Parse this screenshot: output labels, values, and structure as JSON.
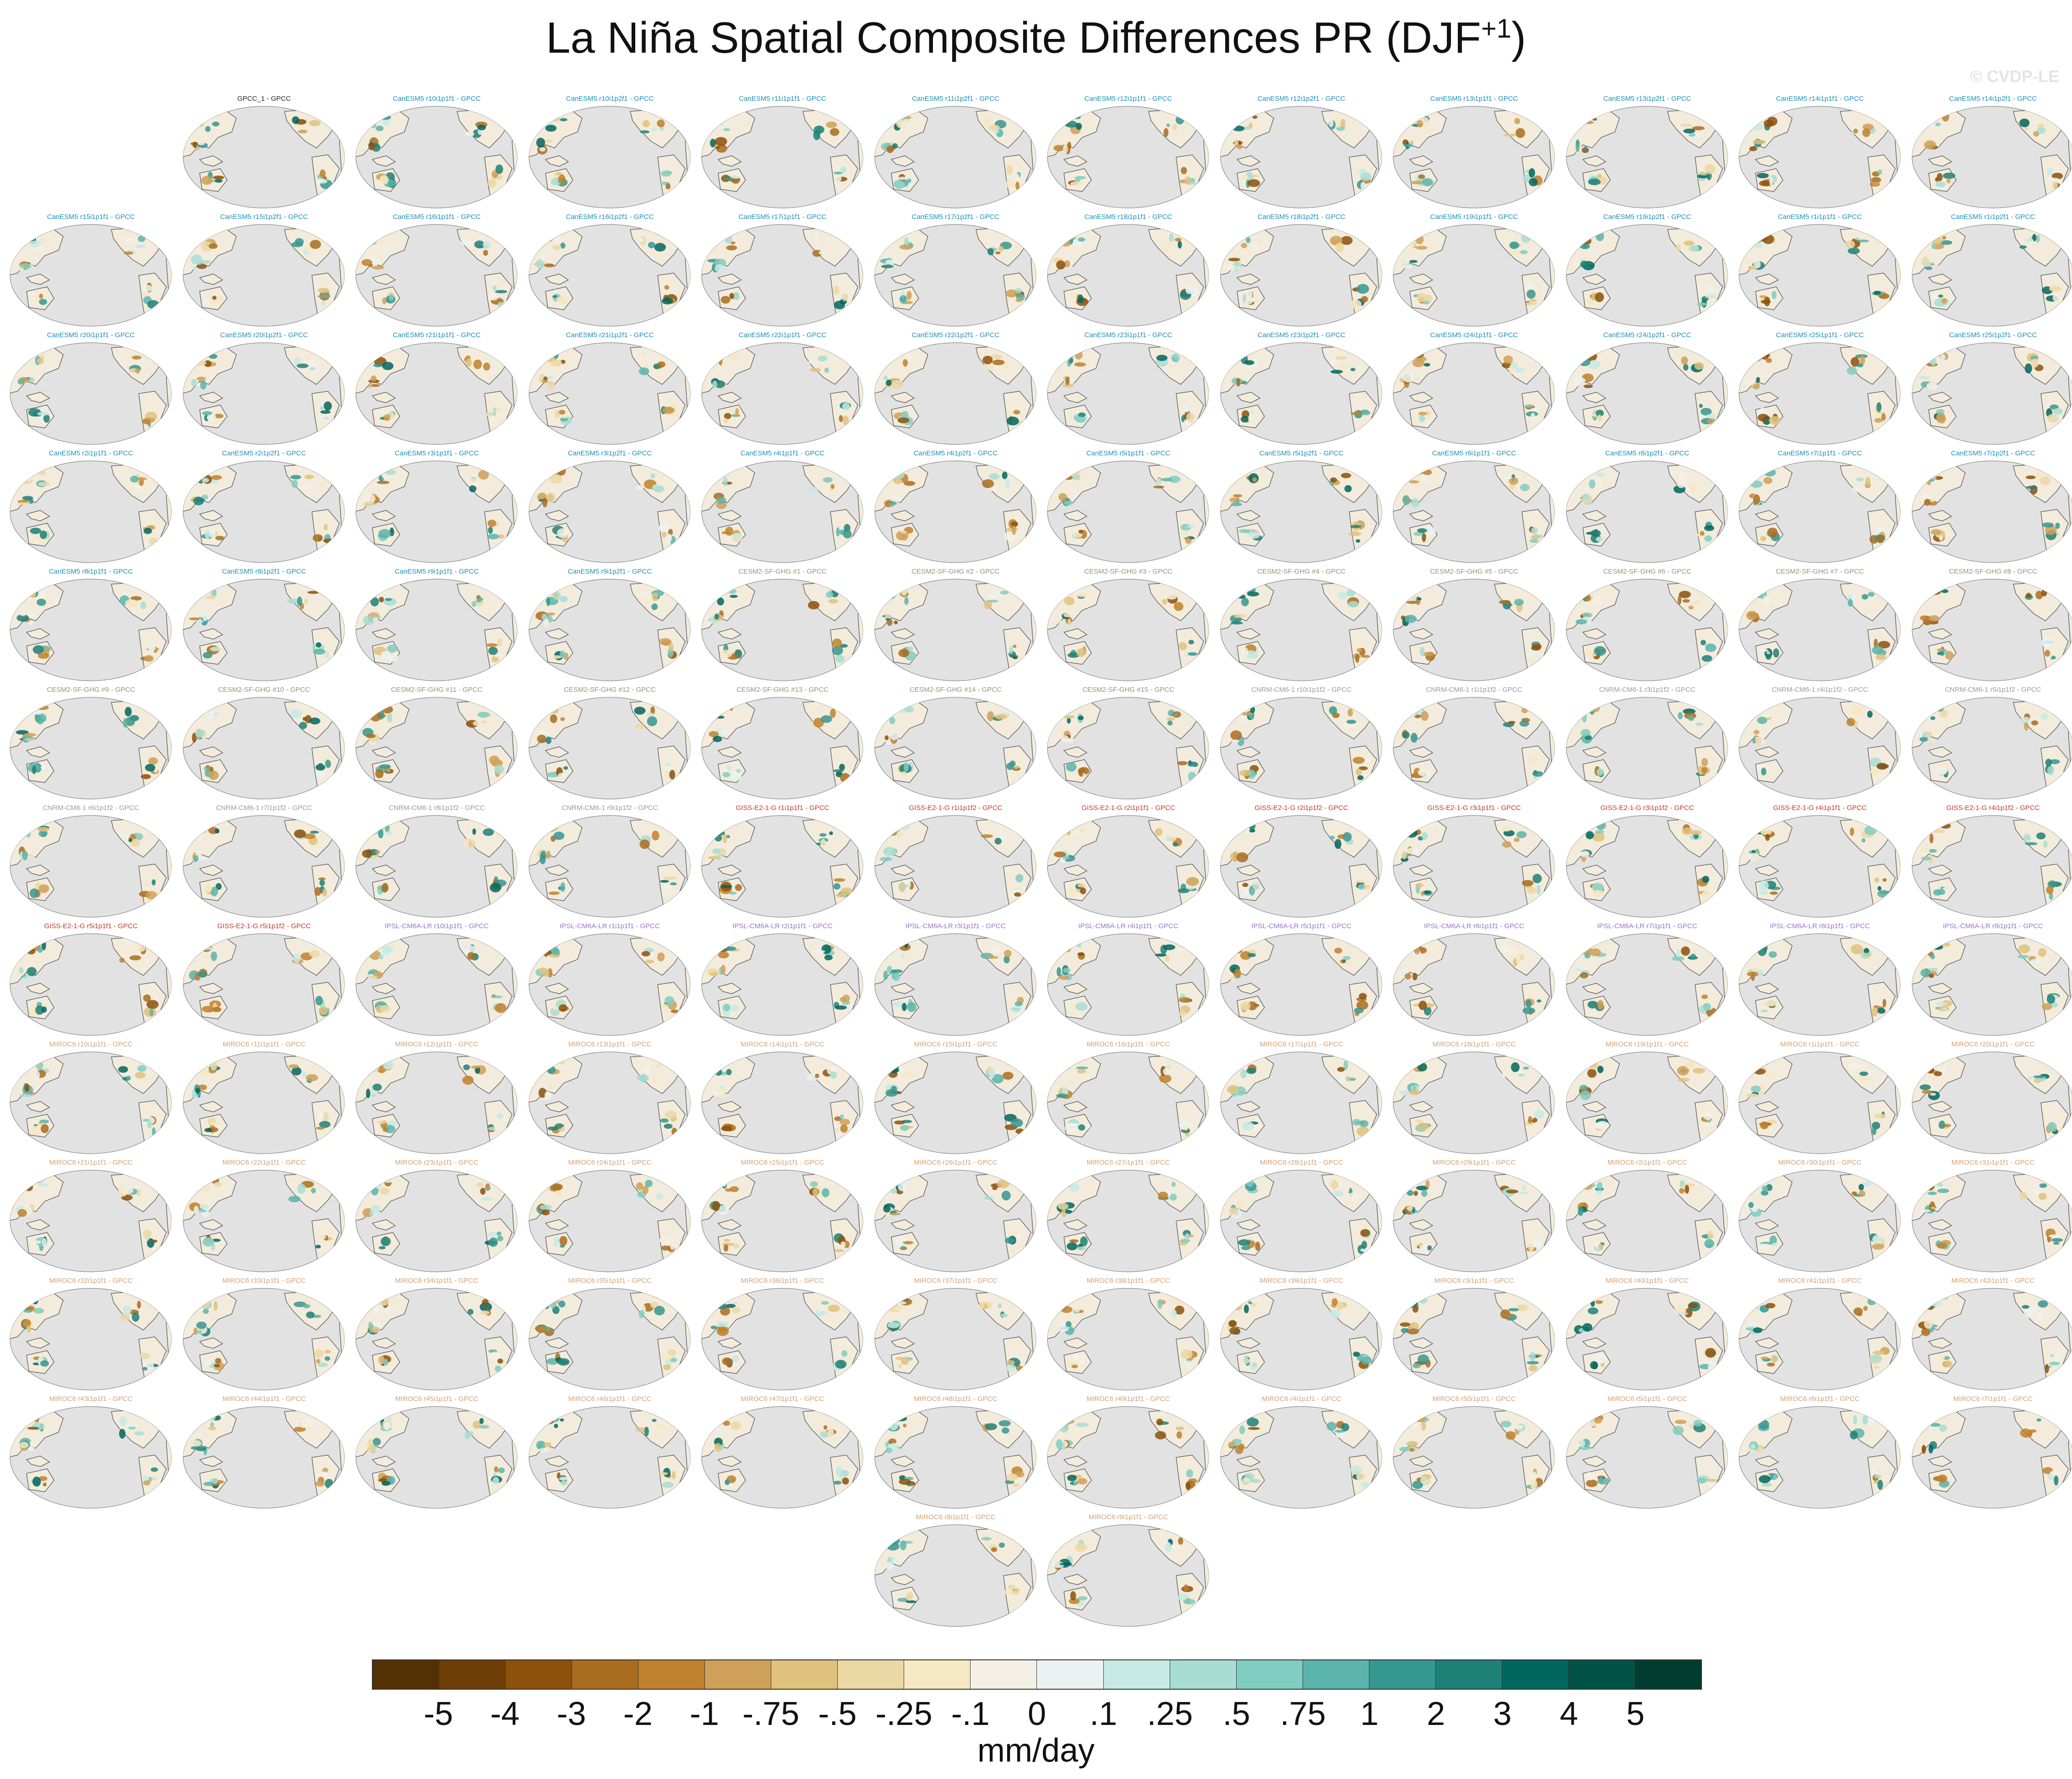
{
  "header": {
    "title_main": "La Niña Spatial Composite Differences PR (DJF",
    "title_sup": "+1",
    "title_end": ")",
    "watermark": "© CVDP-LE"
  },
  "colors": {
    "obs": "#222222",
    "CanESM5": "#1a8fb8",
    "CESM2-SF-GHG": "#8a9a72",
    "CNRM-CM6-1": "#9a9a9a",
    "GISS-E2-1-G": "#c0392b",
    "IPSL-CM6A-LR": "#9b72c9",
    "MIROC6": "#d4a074",
    "ocean": "#e2e2e2",
    "land": "#f3ecdc",
    "coast": "#555555"
  },
  "panels": [
    {
      "label": "GPCC_1 - GPCC",
      "group": "obs"
    },
    {
      "label": "CanESM5 r10i1p1f1 - GPCC",
      "group": "CanESM5"
    },
    {
      "label": "CanESM5 r10i1p2f1 - GPCC",
      "group": "CanESM5"
    },
    {
      "label": "CanESM5 r11i1p1f1 - GPCC",
      "group": "CanESM5"
    },
    {
      "label": "CanESM5 r11i1p2f1 - GPCC",
      "group": "CanESM5"
    },
    {
      "label": "CanESM5 r12i1p1f1 - GPCC",
      "group": "CanESM5"
    },
    {
      "label": "CanESM5 r12i1p2f1 - GPCC",
      "group": "CanESM5"
    },
    {
      "label": "CanESM5 r13i1p1f1 - GPCC",
      "group": "CanESM5"
    },
    {
      "label": "CanESM5 r13i1p2f1 - GPCC",
      "group": "CanESM5"
    },
    {
      "label": "CanESM5 r14i1p1f1 - GPCC",
      "group": "CanESM5"
    },
    {
      "label": "CanESM5 r14i1p2f1 - GPCC",
      "group": "CanESM5"
    },
    {
      "label": "CanESM5 r15i1p1f1 - GPCC",
      "group": "CanESM5"
    },
    {
      "label": "CanESM5 r15i1p2f1 - GPCC",
      "group": "CanESM5"
    },
    {
      "label": "CanESM5 r16i1p1f1 - GPCC",
      "group": "CanESM5"
    },
    {
      "label": "CanESM5 r16i1p2f1 - GPCC",
      "group": "CanESM5"
    },
    {
      "label": "CanESM5 r17i1p1f1 - GPCC",
      "group": "CanESM5"
    },
    {
      "label": "CanESM5 r17i1p2f1 - GPCC",
      "group": "CanESM5"
    },
    {
      "label": "CanESM5 r18i1p1f1 - GPCC",
      "group": "CanESM5"
    },
    {
      "label": "CanESM5 r18i1p2f1 - GPCC",
      "group": "CanESM5"
    },
    {
      "label": "CanESM5 r19i1p1f1 - GPCC",
      "group": "CanESM5"
    },
    {
      "label": "CanESM5 r19i1p2f1 - GPCC",
      "group": "CanESM5"
    },
    {
      "label": "CanESM5 r1i1p1f1 - GPCC",
      "group": "CanESM5"
    },
    {
      "label": "CanESM5 r1i1p2f1 - GPCC",
      "group": "CanESM5"
    },
    {
      "label": "CanESM5 r20i1p1f1 - GPCC",
      "group": "CanESM5"
    },
    {
      "label": "CanESM5 r20i1p2f1 - GPCC",
      "group": "CanESM5"
    },
    {
      "label": "CanESM5 r21i1p1f1 - GPCC",
      "group": "CanESM5"
    },
    {
      "label": "CanESM5 r21i1p2f1 - GPCC",
      "group": "CanESM5"
    },
    {
      "label": "CanESM5 r22i1p1f1 - GPCC",
      "group": "CanESM5"
    },
    {
      "label": "CanESM5 r22i1p2f1 - GPCC",
      "group": "CanESM5"
    },
    {
      "label": "CanESM5 r23i1p1f1 - GPCC",
      "group": "CanESM5"
    },
    {
      "label": "CanESM5 r23i1p2f1 - GPCC",
      "group": "CanESM5"
    },
    {
      "label": "CanESM5 r24i1p1f1 - GPCC",
      "group": "CanESM5"
    },
    {
      "label": "CanESM5 r24i1p2f1 - GPCC",
      "group": "CanESM5"
    },
    {
      "label": "CanESM5 r25i1p1f1 - GPCC",
      "group": "CanESM5"
    },
    {
      "label": "CanESM5 r25i1p2f1 - GPCC",
      "group": "CanESM5"
    },
    {
      "label": "CanESM5 r2i1p1f1 - GPCC",
      "group": "CanESM5"
    },
    {
      "label": "CanESM5 r2i1p2f1 - GPCC",
      "group": "CanESM5"
    },
    {
      "label": "CanESM5 r3i1p1f1 - GPCC",
      "group": "CanESM5"
    },
    {
      "label": "CanESM5 r3i1p2f1 - GPCC",
      "group": "CanESM5"
    },
    {
      "label": "CanESM5 r4i1p1f1 - GPCC",
      "group": "CanESM5"
    },
    {
      "label": "CanESM5 r4i1p2f1 - GPCC",
      "group": "CanESM5"
    },
    {
      "label": "CanESM5 r5i1p1f1 - GPCC",
      "group": "CanESM5"
    },
    {
      "label": "CanESM5 r5i1p2f1 - GPCC",
      "group": "CanESM5"
    },
    {
      "label": "CanESM5 r6i1p1f1 - GPCC",
      "group": "CanESM5"
    },
    {
      "label": "CanESM5 r6i1p2f1 - GPCC",
      "group": "CanESM5"
    },
    {
      "label": "CanESM5 r7i1p1f1 - GPCC",
      "group": "CanESM5"
    },
    {
      "label": "CanESM5 r7i1p2f1 - GPCC",
      "group": "CanESM5"
    },
    {
      "label": "CanESM5 r8i1p1f1 - GPCC",
      "group": "CanESM5"
    },
    {
      "label": "CanESM5 r8i1p2f1 - GPCC",
      "group": "CanESM5"
    },
    {
      "label": "CanESM5 r9i1p1f1 - GPCC",
      "group": "CanESM5"
    },
    {
      "label": "CanESM5 r9i1p2f1 - GPCC",
      "group": "CanESM5"
    },
    {
      "label": "CESM2-SF-GHG #1 - GPCC",
      "group": "CESM2-SF-GHG"
    },
    {
      "label": "CESM2-SF-GHG #2 - GPCC",
      "group": "CESM2-SF-GHG"
    },
    {
      "label": "CESM2-SF-GHG #3 - GPCC",
      "group": "CESM2-SF-GHG"
    },
    {
      "label": "CESM2-SF-GHG #4 - GPCC",
      "group": "CESM2-SF-GHG"
    },
    {
      "label": "CESM2-SF-GHG #5 - GPCC",
      "group": "CESM2-SF-GHG"
    },
    {
      "label": "CESM2-SF-GHG #6 - GPCC",
      "group": "CESM2-SF-GHG"
    },
    {
      "label": "CESM2-SF-GHG #7 - GPCC",
      "group": "CESM2-SF-GHG"
    },
    {
      "label": "CESM2-SF-GHG #8 - GPCC",
      "group": "CESM2-SF-GHG"
    },
    {
      "label": "CESM2-SF-GHG #9 - GPCC",
      "group": "CESM2-SF-GHG"
    },
    {
      "label": "CESM2-SF-GHG #10 - GPCC",
      "group": "CESM2-SF-GHG"
    },
    {
      "label": "CESM2-SF-GHG #11 - GPCC",
      "group": "CESM2-SF-GHG"
    },
    {
      "label": "CESM2-SF-GHG #12 - GPCC",
      "group": "CESM2-SF-GHG"
    },
    {
      "label": "CESM2-SF-GHG #13 - GPCC",
      "group": "CESM2-SF-GHG"
    },
    {
      "label": "CESM2-SF-GHG #14 - GPCC",
      "group": "CESM2-SF-GHG"
    },
    {
      "label": "CESM2-SF-GHG #15 - GPCC",
      "group": "CESM2-SF-GHG"
    },
    {
      "label": "CNRM-CM6-1 r10i1p1f2 - GPCC",
      "group": "CNRM-CM6-1"
    },
    {
      "label": "CNRM-CM6-1 r1i1p1f2 - GPCC",
      "group": "CNRM-CM6-1"
    },
    {
      "label": "CNRM-CM6-1 r3i1p1f2 - GPCC",
      "group": "CNRM-CM6-1"
    },
    {
      "label": "CNRM-CM6-1 r4i1p1f2 - GPCC",
      "group": "CNRM-CM6-1"
    },
    {
      "label": "CNRM-CM6-1 r5i1p1f2 - GPCC",
      "group": "CNRM-CM6-1"
    },
    {
      "label": "CNRM-CM6-1 r6i1p1f2 - GPCC",
      "group": "CNRM-CM6-1"
    },
    {
      "label": "CNRM-CM6-1 r7i1p1f2 - GPCC",
      "group": "CNRM-CM6-1"
    },
    {
      "label": "CNRM-CM6-1 r8i1p1f2 - GPCC",
      "group": "CNRM-CM6-1"
    },
    {
      "label": "CNRM-CM6-1 r9i1p1f2 - GPCC",
      "group": "CNRM-CM6-1"
    },
    {
      "label": "GISS-E2-1-G r1i1p1f1 - GPCC",
      "group": "GISS-E2-1-G"
    },
    {
      "label": "GISS-E2-1-G r1i1p1f2 - GPCC",
      "group": "GISS-E2-1-G"
    },
    {
      "label": "GISS-E2-1-G r2i1p1f1 - GPCC",
      "group": "GISS-E2-1-G"
    },
    {
      "label": "GISS-E2-1-G r2i1p1f2 - GPCC",
      "group": "GISS-E2-1-G"
    },
    {
      "label": "GISS-E2-1-G r3i1p1f1 - GPCC",
      "group": "GISS-E2-1-G"
    },
    {
      "label": "GISS-E2-1-G r3i1p1f2 - GPCC",
      "group": "GISS-E2-1-G"
    },
    {
      "label": "GISS-E2-1-G r4i1p1f1 - GPCC",
      "group": "GISS-E2-1-G"
    },
    {
      "label": "GISS-E2-1-G r4i1p1f2 - GPCC",
      "group": "GISS-E2-1-G"
    },
    {
      "label": "GISS-E2-1-G r5i1p1f1 - GPCC",
      "group": "GISS-E2-1-G"
    },
    {
      "label": "GISS-E2-1-G r5i1p1f2 - GPCC",
      "group": "GISS-E2-1-G"
    },
    {
      "label": "IPSL-CM6A-LR r10i1p1f1 - GPCC",
      "group": "IPSL-CM6A-LR"
    },
    {
      "label": "IPSL-CM6A-LR r1i1p1f1 - GPCC",
      "group": "IPSL-CM6A-LR"
    },
    {
      "label": "IPSL-CM6A-LR r2i1p1f1 - GPCC",
      "group": "IPSL-CM6A-LR"
    },
    {
      "label": "IPSL-CM6A-LR r3i1p1f1 - GPCC",
      "group": "IPSL-CM6A-LR"
    },
    {
      "label": "IPSL-CM6A-LR r4i1p1f1 - GPCC",
      "group": "IPSL-CM6A-LR"
    },
    {
      "label": "IPSL-CM6A-LR r5i1p1f1 - GPCC",
      "group": "IPSL-CM6A-LR"
    },
    {
      "label": "IPSL-CM6A-LR r6i1p1f1 - GPCC",
      "group": "IPSL-CM6A-LR"
    },
    {
      "label": "IPSL-CM6A-LR r7i1p1f1 - GPCC",
      "group": "IPSL-CM6A-LR"
    },
    {
      "label": "IPSL-CM6A-LR r8i1p1f1 - GPCC",
      "group": "IPSL-CM6A-LR"
    },
    {
      "label": "IPSL-CM6A-LR r9i1p1f1 - GPCC",
      "group": "IPSL-CM6A-LR"
    },
    {
      "label": "MIROC6 r10i1p1f1 - GPCC",
      "group": "MIROC6"
    },
    {
      "label": "MIROC6 r11i1p1f1 - GPCC",
      "group": "MIROC6"
    },
    {
      "label": "MIROC6 r12i1p1f1 - GPCC",
      "group": "MIROC6"
    },
    {
      "label": "MIROC6 r13i1p1f1 - GPCC",
      "group": "MIROC6"
    },
    {
      "label": "MIROC6 r14i1p1f1 - GPCC",
      "group": "MIROC6"
    },
    {
      "label": "MIROC6 r15i1p1f1 - GPCC",
      "group": "MIROC6"
    },
    {
      "label": "MIROC6 r16i1p1f1 - GPCC",
      "group": "MIROC6"
    },
    {
      "label": "MIROC6 r17i1p1f1 - GPCC",
      "group": "MIROC6"
    },
    {
      "label": "MIROC6 r18i1p1f1 - GPCC",
      "group": "MIROC6"
    },
    {
      "label": "MIROC6 r19i1p1f1 - GPCC",
      "group": "MIROC6"
    },
    {
      "label": "MIROC6 r1i1p1f1 - GPCC",
      "group": "MIROC6"
    },
    {
      "label": "MIROC6 r20i1p1f1 - GPCC",
      "group": "MIROC6"
    },
    {
      "label": "MIROC6 r21i1p1f1 - GPCC",
      "group": "MIROC6"
    },
    {
      "label": "MIROC6 r22i1p1f1 - GPCC",
      "group": "MIROC6"
    },
    {
      "label": "MIROC6 r23i1p1f1 - GPCC",
      "group": "MIROC6"
    },
    {
      "label": "MIROC6 r24i1p1f1 - GPCC",
      "group": "MIROC6"
    },
    {
      "label": "MIROC6 r25i1p1f1 - GPCC",
      "group": "MIROC6"
    },
    {
      "label": "MIROC6 r26i1p1f1 - GPCC",
      "group": "MIROC6"
    },
    {
      "label": "MIROC6 r27i1p1f1 - GPCC",
      "group": "MIROC6"
    },
    {
      "label": "MIROC6 r28i1p1f1 - GPCC",
      "group": "MIROC6"
    },
    {
      "label": "MIROC6 r29i1p1f1 - GPCC",
      "group": "MIROC6"
    },
    {
      "label": "MIROC6 r2i1p1f1 - GPCC",
      "group": "MIROC6"
    },
    {
      "label": "MIROC6 r30i1p1f1 - GPCC",
      "group": "MIROC6"
    },
    {
      "label": "MIROC6 r31i1p1f1 - GPCC",
      "group": "MIROC6"
    },
    {
      "label": "MIROC6 r32i1p1f1 - GPCC",
      "group": "MIROC6"
    },
    {
      "label": "MIROC6 r33i1p1f1 - GPCC",
      "group": "MIROC6"
    },
    {
      "label": "MIROC6 r34i1p1f1 - GPCC",
      "group": "MIROC6"
    },
    {
      "label": "MIROC6 r35i1p1f1 - GPCC",
      "group": "MIROC6"
    },
    {
      "label": "MIROC6 r36i1p1f1 - GPCC",
      "group": "MIROC6"
    },
    {
      "label": "MIROC6 r37i1p1f1 - GPCC",
      "group": "MIROC6"
    },
    {
      "label": "MIROC6 r38i1p1f1 - GPCC",
      "group": "MIROC6"
    },
    {
      "label": "MIROC6 r39i1p1f1 - GPCC",
      "group": "MIROC6"
    },
    {
      "label": "MIROC6 r3i1p1f1 - GPCC",
      "group": "MIROC6"
    },
    {
      "label": "MIROC6 r40i1p1f1 - GPCC",
      "group": "MIROC6"
    },
    {
      "label": "MIROC6 r41i1p1f1 - GPCC",
      "group": "MIROC6"
    },
    {
      "label": "MIROC6 r42i1p1f1 - GPCC",
      "group": "MIROC6"
    },
    {
      "label": "MIROC6 r43i1p1f1 - GPCC",
      "group": "MIROC6"
    },
    {
      "label": "MIROC6 r44i1p1f1 - GPCC",
      "group": "MIROC6"
    },
    {
      "label": "MIROC6 r45i1p1f1 - GPCC",
      "group": "MIROC6"
    },
    {
      "label": "MIROC6 r46i1p1f1 - GPCC",
      "group": "MIROC6"
    },
    {
      "label": "MIROC6 r47i1p1f1 - GPCC",
      "group": "MIROC6"
    },
    {
      "label": "MIROC6 r48i1p1f1 - GPCC",
      "group": "MIROC6"
    },
    {
      "label": "MIROC6 r49i1p1f1 - GPCC",
      "group": "MIROC6"
    },
    {
      "label": "MIROC6 r4i1p1f1 - GPCC",
      "group": "MIROC6"
    },
    {
      "label": "MIROC6 r50i1p1f1 - GPCC",
      "group": "MIROC6"
    },
    {
      "label": "MIROC6 r5i1p1f1 - GPCC",
      "group": "MIROC6"
    },
    {
      "label": "MIROC6 r6i1p1f1 - GPCC",
      "group": "MIROC6"
    },
    {
      "label": "MIROC6 r7i1p1f1 - GPCC",
      "group": "MIROC6"
    },
    {
      "label": "MIROC6 r8i1p1f1 - GPCC",
      "group": "MIROC6"
    },
    {
      "label": "MIROC6 r9i1p1f1 - GPCC",
      "group": "MIROC6"
    }
  ],
  "colorbar": {
    "colors": [
      "#543005",
      "#6e3f07",
      "#8c510a",
      "#a96d20",
      "#bf812d",
      "#cfa057",
      "#dfc27d",
      "#ecd8a5",
      "#f6e8c3",
      "#f5f0e6",
      "#eaf3f1",
      "#c7eae5",
      "#a8ddd4",
      "#80cdc1",
      "#5ab4ac",
      "#35978f",
      "#1f8077",
      "#01665e",
      "#015348",
      "#003c30"
    ],
    "ticks": [
      "-5",
      "-4",
      "-3",
      "-2",
      "-1",
      "-.75",
      "-.5",
      "-.25",
      "-.1",
      "0",
      ".1",
      ".25",
      ".5",
      ".75",
      "1",
      "2",
      "3",
      "4",
      "5"
    ],
    "units": "mm/day"
  }
}
